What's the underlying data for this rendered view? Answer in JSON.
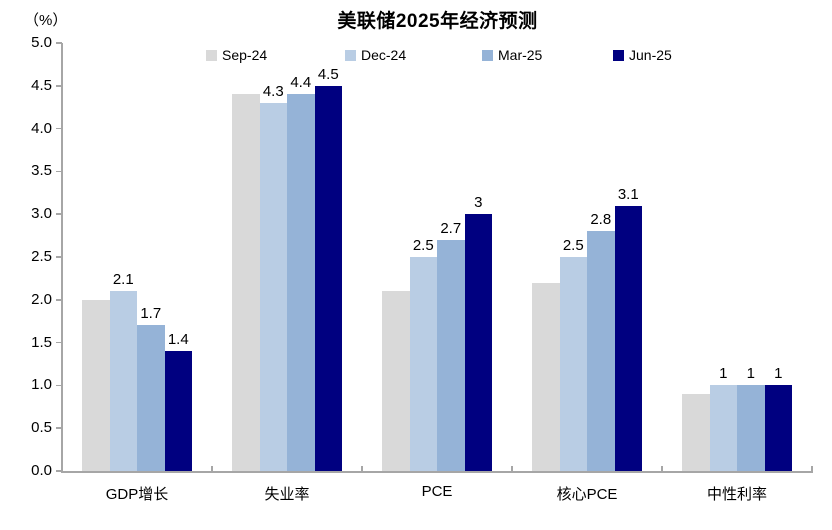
{
  "title": "美联储2025年经济预测",
  "y_axis": {
    "unit_label": "（%）",
    "ticks": [
      "5.0",
      "4.5",
      "4.0",
      "3.5",
      "3.0",
      "2.5",
      "2.0",
      "1.5",
      "1.0",
      "0.5",
      "0.0"
    ]
  },
  "legend": [
    {
      "name": "Sep-24",
      "color": "#D9D9D9"
    },
    {
      "name": "Dec-24",
      "color": "#B9CDE4"
    },
    {
      "name": "Mar-25",
      "color": "#95B3D7"
    },
    {
      "name": "Jun-25",
      "color": "#000080"
    }
  ],
  "chart_data": {
    "type": "bar",
    "title": "美联储2025年经济预测",
    "ylabel": "（%）",
    "categories": [
      "GDP增长",
      "失业率",
      "PCE",
      "核心PCE",
      "中性利率"
    ],
    "series": [
      {
        "name": "Sep-24",
        "color": "#D9D9D9",
        "values": [
          2.0,
          4.4,
          2.1,
          2.2,
          0.9
        ],
        "data_labels": [
          "",
          "",
          "",
          "",
          ""
        ]
      },
      {
        "name": "Dec-24",
        "color": "#B9CDE4",
        "values": [
          2.1,
          4.3,
          2.5,
          2.5,
          1.0
        ],
        "data_labels": [
          "2.1",
          "4.3",
          "2.5",
          "2.5",
          "1"
        ]
      },
      {
        "name": "Mar-25",
        "color": "#95B3D7",
        "values": [
          1.7,
          4.4,
          2.7,
          2.8,
          1.0
        ],
        "data_labels": [
          "1.7",
          "4.4",
          "2.7",
          "2.8",
          "1"
        ]
      },
      {
        "name": "Jun-25",
        "color": "#000080",
        "values": [
          1.4,
          4.5,
          3.0,
          3.1,
          1.0
        ],
        "data_labels": [
          "1.4",
          "4.5",
          "3",
          "3.1",
          "1"
        ]
      }
    ],
    "ylim": [
      0,
      5
    ],
    "ytick_step": 0.5,
    "grid": false,
    "legend_position": "top"
  },
  "colors": {
    "axis": "#A6A6A6",
    "text": "#000000",
    "background": "#FFFFFF"
  }
}
